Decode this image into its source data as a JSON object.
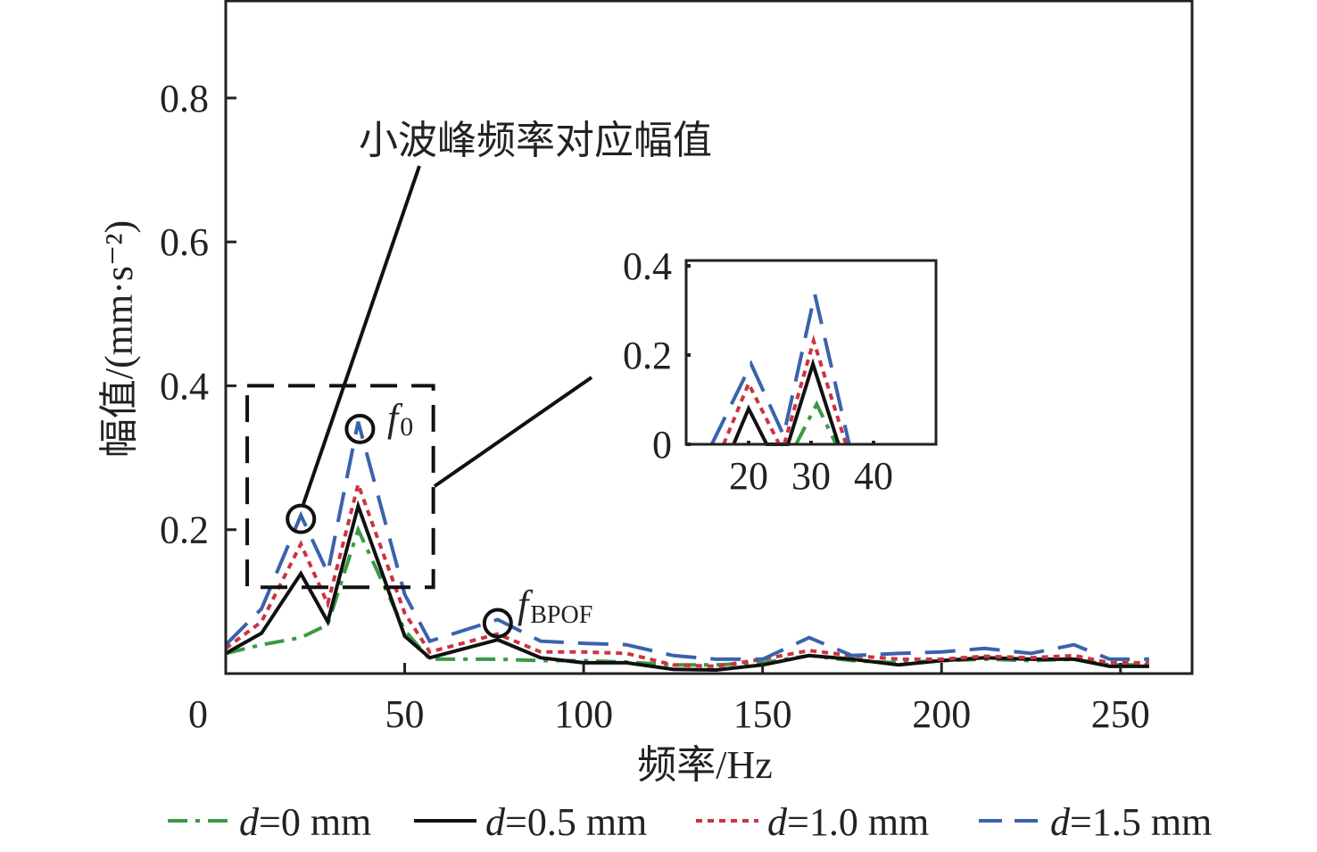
{
  "chart_data": {
    "type": "line",
    "title": "",
    "xlabel": "频率/Hz",
    "ylabel": "幅值/(mm·s⁻²)",
    "xlim": [
      0,
      270
    ],
    "ylim": [
      0,
      0.935
    ],
    "xticks": [
      "0",
      "50",
      "100",
      "150",
      "200",
      "250"
    ],
    "xtick_values": [
      0,
      50,
      100,
      150,
      200,
      250
    ],
    "yticks": [
      "0.2",
      "0.4",
      "0.6",
      "0.8"
    ],
    "ytick_values": [
      0.2,
      0.4,
      0.6,
      0.8
    ],
    "grid": false,
    "legend_position": "bottom",
    "x": [
      0,
      10,
      21,
      28.5,
      37,
      50,
      57,
      76,
      88,
      100,
      112,
      125,
      137,
      150,
      163,
      175,
      188,
      200,
      212,
      225,
      237,
      247,
      258
    ],
    "series": [
      {
        "name": "d=0 mm",
        "legend_italic": "d",
        "legend_rest": "=0 mm",
        "color": "#3a9a44",
        "dash": "dashdot",
        "values": [
          0.028,
          0.04,
          0.05,
          0.068,
          0.2,
          0.06,
          0.02,
          0.02,
          0.018,
          0.018,
          0.016,
          0.012,
          0.012,
          0.015,
          0.025,
          0.018,
          0.015,
          0.018,
          0.02,
          0.018,
          0.02,
          0.012,
          0.012
        ]
      },
      {
        "name": "d=0.5 mm",
        "legend_italic": "d",
        "legend_rest": "=0.5 mm",
        "color": "#111111",
        "dash": "solid",
        "values": [
          0.028,
          0.056,
          0.139,
          0.072,
          0.233,
          0.052,
          0.022,
          0.047,
          0.022,
          0.015,
          0.015,
          0.006,
          0.005,
          0.012,
          0.025,
          0.02,
          0.012,
          0.018,
          0.022,
          0.02,
          0.02,
          0.01,
          0.01
        ]
      },
      {
        "name": "d=1.0 mm",
        "legend_italic": "d",
        "legend_rest": "=1.0 mm",
        "color": "#cc3340",
        "dash": "dotted",
        "values": [
          0.035,
          0.072,
          0.18,
          0.097,
          0.263,
          0.084,
          0.03,
          0.055,
          0.03,
          0.03,
          0.028,
          0.012,
          0.01,
          0.02,
          0.032,
          0.025,
          0.02,
          0.02,
          0.024,
          0.022,
          0.025,
          0.015,
          0.015
        ]
      },
      {
        "name": "d=1.5 mm",
        "legend_italic": "d",
        "legend_rest": "=1.5 mm",
        "color": "#3a62ad",
        "dash": "dashed",
        "values": [
          0.04,
          0.09,
          0.22,
          0.14,
          0.35,
          0.11,
          0.045,
          0.075,
          0.045,
          0.042,
          0.04,
          0.025,
          0.02,
          0.02,
          0.05,
          0.025,
          0.028,
          0.03,
          0.035,
          0.028,
          0.04,
          0.02,
          0.02
        ]
      }
    ],
    "annotations": {
      "callout_text": "小波峰频率对应幅值",
      "f0_label": "f",
      "f0_sub": "0",
      "fbpof_label": "f",
      "fbpof_sub": "BPOF",
      "circles": [
        {
          "x": 21,
          "y": 0.215
        },
        {
          "x": 37.5,
          "y": 0.34
        },
        {
          "x": 76,
          "y": 0.07
        }
      ],
      "zoom_region": {
        "x": [
          6,
          58
        ],
        "y": [
          0.12,
          0.4
        ]
      }
    },
    "inset": {
      "xlim": [
        10,
        50
      ],
      "ylim": [
        0,
        0.412
      ],
      "xticks": [
        "20",
        "30",
        "40"
      ],
      "xtick_values": [
        20,
        30,
        40
      ],
      "yticks": [
        "0",
        "0.2",
        "0.4"
      ],
      "ytick_values": [
        0,
        0.2,
        0.4
      ],
      "series": [
        {
          "name": "d=0 mm",
          "points": [
            [
              27.6,
              0
            ],
            [
              30.9,
              0.09
            ],
            [
              34,
              0
            ]
          ]
        },
        {
          "name": "d=0.5 mm",
          "points": [
            [
              17.6,
              0
            ],
            [
              20,
              0.08
            ],
            [
              22.9,
              0
            ],
            [
              26.3,
              0
            ],
            [
              30.3,
              0.18
            ],
            [
              34.4,
              0
            ]
          ]
        },
        {
          "name": "d=1.0 mm",
          "points": [
            [
              16,
              0
            ],
            [
              20,
              0.136
            ],
            [
              24.9,
              0
            ],
            [
              25.7,
              0
            ],
            [
              30.4,
              0.232
            ],
            [
              35.6,
              0
            ]
          ]
        },
        {
          "name": "d=1.5 mm",
          "points": [
            [
              14.1,
              0
            ],
            [
              20.4,
              0.18
            ],
            [
              25.6,
              0.02
            ],
            [
              30.6,
              0.336
            ],
            [
              36.1,
              0
            ]
          ]
        }
      ]
    }
  }
}
